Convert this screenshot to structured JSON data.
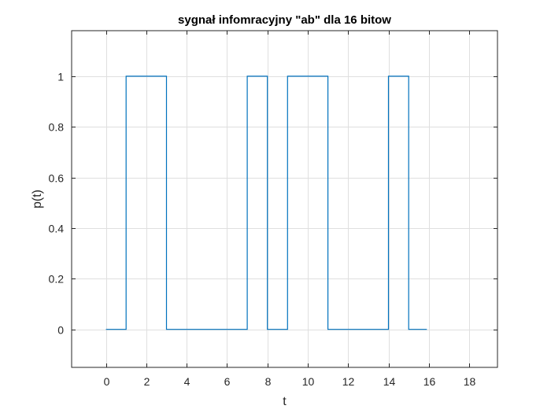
{
  "chart_data": {
    "type": "line",
    "title": "sygnał infomracyjny \"ab\" dla 16 bitow",
    "xlabel": "t",
    "ylabel": "p(t)",
    "xlim": [
      -1.7,
      19.4
    ],
    "ylim": [
      -0.15,
      1.18
    ],
    "xticks": [
      0,
      2,
      4,
      6,
      8,
      10,
      12,
      14,
      16,
      18
    ],
    "yticks": [
      0,
      0.2,
      0.4,
      0.6,
      0.8,
      1
    ],
    "xtick_labels": [
      "0",
      "2",
      "4",
      "6",
      "8",
      "10",
      "12",
      "14",
      "16",
      "18"
    ],
    "ytick_labels": [
      "0",
      "0.2",
      "0.4",
      "0.6",
      "0.8",
      "1"
    ],
    "grid": true,
    "step": "post",
    "series": [
      {
        "color": "#0072bd",
        "x": [
          0,
          1,
          2,
          3,
          4,
          5,
          6,
          7,
          8,
          9,
          10,
          11,
          12,
          13,
          14,
          15,
          15.9
        ],
        "y": [
          0,
          1,
          1,
          0,
          0,
          0,
          0,
          1,
          0,
          1,
          1,
          0,
          0,
          0,
          1,
          0,
          0
        ]
      }
    ]
  }
}
